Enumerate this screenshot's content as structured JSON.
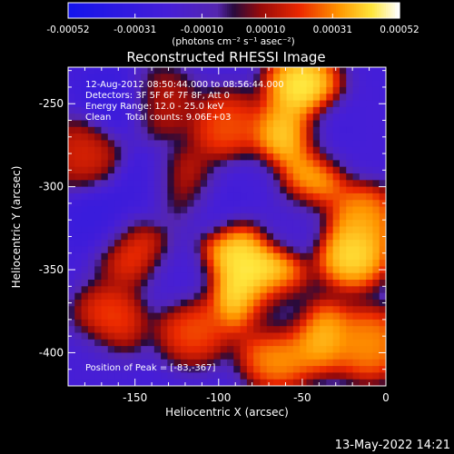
{
  "chart_data": {
    "type": "heatmap",
    "title": "Reconstructed RHESSI Image",
    "xlabel": "Heliocentric X (arcsec)",
    "ylabel": "Heliocentric Y (arcsec)",
    "xlim": [
      -190,
      0
    ],
    "ylim": [
      -420,
      -228
    ],
    "x_ticks": [
      -150,
      -100,
      -50,
      0
    ],
    "y_ticks": [
      -250,
      -300,
      -350,
      -400
    ],
    "colorbar": {
      "ticks": [
        "-0.00052",
        "-0.00031",
        "-0.00010",
        "0.00010",
        "0.00031",
        "0.00052"
      ],
      "label": "(photons cm⁻² s⁻¹ asec⁻²)",
      "range": [
        -0.00052,
        0.00052
      ]
    },
    "annotations": [
      "12-Aug-2012 08:50:44.000 to 08:56:44.000",
      "Detectors: 3F 5F 6F 7F 8F, Att 0",
      "Energy Range: 12.0 - 25.0 keV",
      "Clean     Total counts: 9.06E+03"
    ],
    "peak_label": "Position of Peak = [-83,-367]",
    "bright_regions": [
      {
        "x": -50,
        "y": -240,
        "value": 0.00052
      },
      {
        "x": -60,
        "y": -270,
        "value": 0.00048
      },
      {
        "x": -45,
        "y": -295,
        "value": 0.00045
      },
      {
        "x": -95,
        "y": -265,
        "value": 0.0003
      },
      {
        "x": -120,
        "y": -300,
        "value": 0.0003
      },
      {
        "x": -90,
        "y": -340,
        "value": 0.0005
      },
      {
        "x": -70,
        "y": -355,
        "value": 0.00052
      },
      {
        "x": -85,
        "y": -367,
        "value": 0.00052
      },
      {
        "x": -20,
        "y": -340,
        "value": 0.0005
      },
      {
        "x": -15,
        "y": -320,
        "value": 0.0004
      },
      {
        "x": -40,
        "y": -390,
        "value": 0.00045
      },
      {
        "x": -65,
        "y": -400,
        "value": 0.0004
      },
      {
        "x": -150,
        "y": -340,
        "value": 0.00028
      },
      {
        "x": -165,
        "y": -380,
        "value": 0.00028
      },
      {
        "x": -180,
        "y": -280,
        "value": 0.00022
      },
      {
        "x": -115,
        "y": -385,
        "value": 0.0003
      },
      {
        "x": -10,
        "y": -395,
        "value": 0.00038
      },
      {
        "x": -135,
        "y": -250,
        "value": 0.00018
      }
    ],
    "dark_regions": [
      {
        "x": -160,
        "y": -250,
        "value": -0.00031
      },
      {
        "x": -140,
        "y": -300,
        "value": -0.00028
      },
      {
        "x": -170,
        "y": -320,
        "value": -0.0003
      },
      {
        "x": -105,
        "y": -310,
        "value": -0.0003
      },
      {
        "x": -80,
        "y": -300,
        "value": -0.00022
      },
      {
        "x": -30,
        "y": -270,
        "value": -0.00025
      },
      {
        "x": -55,
        "y": -320,
        "value": -0.0002
      },
      {
        "x": -125,
        "y": -355,
        "value": -0.00022
      },
      {
        "x": -180,
        "y": -405,
        "value": -0.0002
      },
      {
        "x": -65,
        "y": -375,
        "value": -0.00018
      },
      {
        "x": -10,
        "y": -270,
        "value": -0.0002
      }
    ]
  },
  "footer": {
    "timestamp": "13-May-2022 14:21"
  }
}
